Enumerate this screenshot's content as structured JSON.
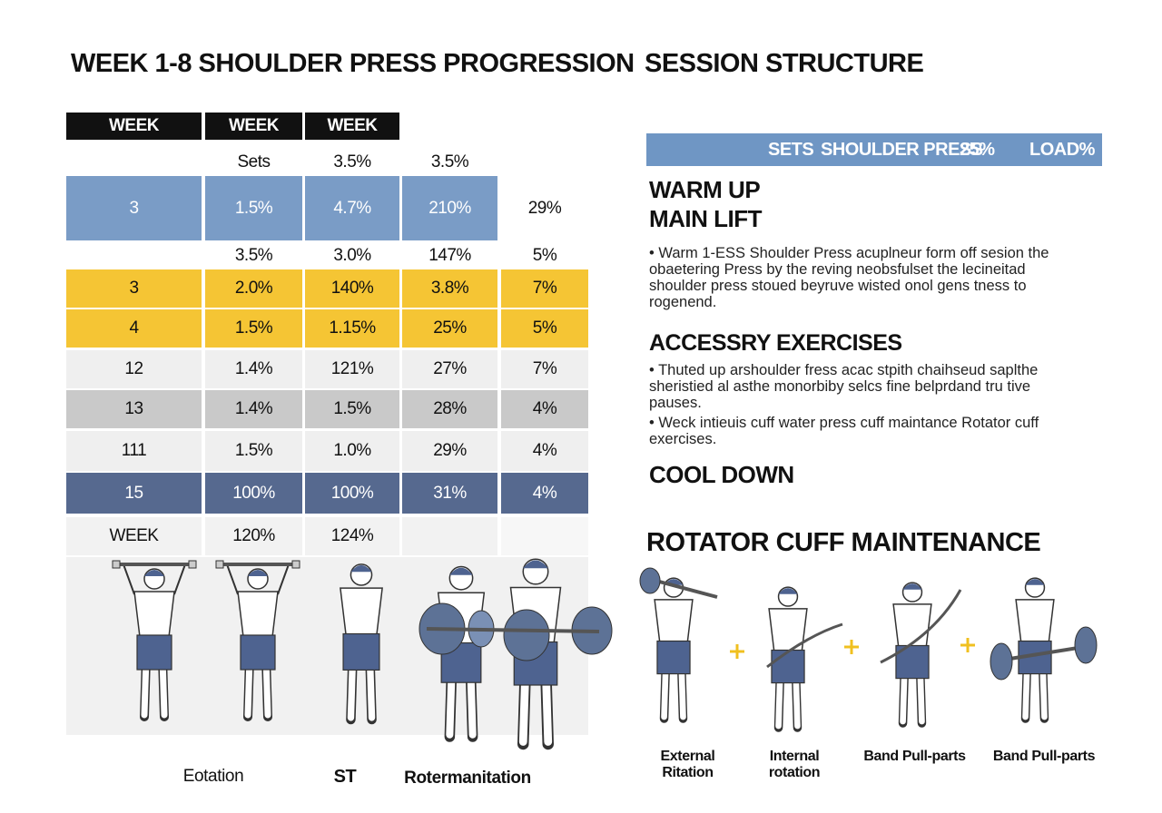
{
  "left": {
    "title": "WEEK 1-8 SHOULDER PRESS PROGRESSION",
    "table": {
      "rows": [
        [
          "WEEK",
          "WEEK",
          "WEEK"
        ],
        [
          null,
          "Sets",
          "3.5%",
          "3.5%"
        ],
        [
          "3",
          "1.5%",
          "4.7%",
          "210%",
          "29%"
        ],
        [
          null,
          "3.5%",
          "3.0%",
          "147%",
          "5%"
        ],
        [
          "3",
          "2.0%",
          "140%",
          "3.8%",
          "7%"
        ],
        [
          "4",
          "1.5%",
          "1.15%",
          "25%",
          "5%"
        ],
        [
          "12",
          "1.4%",
          "121%",
          "27%",
          "7%"
        ],
        [
          "13",
          "1.4%",
          "1.5%",
          "28%",
          "4%"
        ],
        [
          "111",
          "1.5%",
          "1.0%",
          "29%",
          "4%"
        ],
        [
          "15",
          "100%",
          "100%",
          "31%",
          "4%"
        ],
        [
          "WEEK",
          "120%",
          "124%"
        ]
      ]
    },
    "figure_captions": [
      "Eotation",
      "ST",
      "Rotermanitation"
    ]
  },
  "right": {
    "title": "SESSION STRUCTURE",
    "bar": [
      "SETS",
      "SHOULDER PRESS",
      "25%",
      "LOAD%"
    ],
    "warm_up": "WARM UP",
    "main_lift": "MAIN LIFT",
    "main_text": "• Warm 1-ESS Shoulder Press acuplneur form off sesion the obaetering Press by the reving neobsfulset the lecineitad shoulder press stoued beyruve wisted onol gens tness to rogenend.",
    "accessory": "ACCESSRY EXERCISES",
    "accessory_bullets": [
      "• Thuted up arshoulder fress acac stpith chaihseud saplthe sheristied al asthe monorbiby selcs fine belprdand tru tive pauses.",
      "• Weck intieuis cuff water press cuff maintance Rotator cuff exercises."
    ],
    "cool_down": "COOL DOWN",
    "rotator_title": "ROTATOR CUFF MAINTENANCE",
    "rotator_captions": [
      "External Ritation",
      "Internal rotation",
      "Band Pull-parts",
      "Band Pull-parts"
    ]
  }
}
